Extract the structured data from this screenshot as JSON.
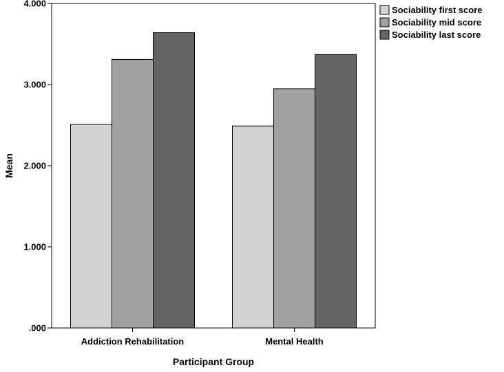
{
  "chart_data": {
    "type": "bar",
    "categories": [
      "Addiction Rehabilitation",
      "Mental Health"
    ],
    "series": [
      {
        "name": "Sociability first score",
        "values": [
          2.51,
          2.49
        ],
        "color": "#d3d3d3"
      },
      {
        "name": "Sociability mid score",
        "values": [
          3.31,
          2.95
        ],
        "color": "#a0a0a0"
      },
      {
        "name": "Sociability last score",
        "values": [
          3.64,
          3.37
        ],
        "color": "#646464"
      }
    ],
    "xlabel": "Participant Group",
    "ylabel": "Mean",
    "ylim": [
      0,
      4
    ],
    "yticks": [
      ".000",
      "1.000",
      "2.000",
      "3.000",
      "4.000"
    ],
    "grid": false,
    "legend_position": "top-right"
  }
}
